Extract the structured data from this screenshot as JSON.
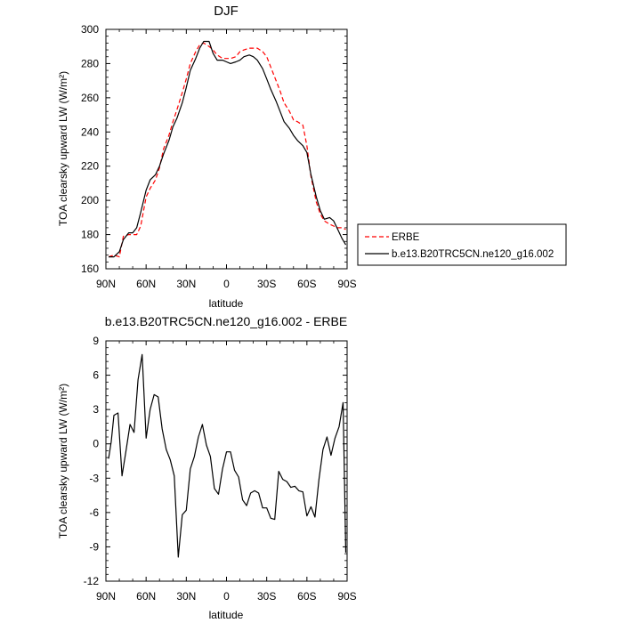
{
  "chart_data": [
    {
      "type": "line",
      "title": "DJF",
      "xlabel": "latitude",
      "ylabel": "TOA clearsky upward LW (W/m²)",
      "xlim": [
        90,
        -90
      ],
      "ylim": [
        160,
        300
      ],
      "x_ticks": [
        {
          "value": 90,
          "label": "90N"
        },
        {
          "value": 60,
          "label": "60N"
        },
        {
          "value": 30,
          "label": "30N"
        },
        {
          "value": 0,
          "label": "0"
        },
        {
          "value": -30,
          "label": "30S"
        },
        {
          "value": -60,
          "label": "60S"
        },
        {
          "value": -90,
          "label": "90S"
        }
      ],
      "y_ticks": [
        160,
        180,
        200,
        220,
        240,
        260,
        280,
        300
      ],
      "legend": {
        "placement": "right"
      },
      "series": [
        {
          "name": "ERBE",
          "color": "#ff0000",
          "dash": "dashed",
          "x": [
            88,
            84,
            80,
            77,
            73,
            70,
            67,
            64,
            60,
            57,
            53,
            50,
            47,
            43,
            40,
            37,
            33,
            30,
            27,
            23,
            20,
            17,
            13,
            10,
            7,
            3,
            0,
            -3,
            -7,
            -10,
            -13,
            -17,
            -20,
            -23,
            -27,
            -30,
            -33,
            -37,
            -40,
            -43,
            -47,
            -50,
            -53,
            -57,
            -60,
            -63,
            -67,
            -70,
            -73,
            -77,
            -80,
            -83,
            -86,
            -89
          ],
          "values": [
            167,
            168,
            167,
            179,
            180,
            180,
            180,
            185,
            202,
            207,
            212,
            219,
            230,
            238,
            246,
            253,
            263,
            271,
            280,
            287,
            291,
            292,
            290,
            288,
            285,
            283,
            283,
            283,
            284,
            287,
            288,
            289,
            289,
            289,
            287,
            284,
            278,
            270,
            264,
            257,
            252,
            247,
            246,
            244,
            232,
            214,
            199,
            192,
            188,
            186,
            185,
            184,
            184,
            183
          ]
        },
        {
          "name": "b.e13.B20TRC5CN.ne120_g16.002",
          "color": "#000000",
          "dash": "solid",
          "x": [
            88,
            84,
            80,
            77,
            73,
            70,
            67,
            64,
            60,
            57,
            53,
            50,
            47,
            43,
            40,
            37,
            33,
            30,
            27,
            23,
            20,
            17,
            13,
            10,
            7,
            3,
            0,
            -3,
            -7,
            -10,
            -13,
            -17,
            -20,
            -23,
            -27,
            -30,
            -33,
            -37,
            -40,
            -43,
            -47,
            -50,
            -53,
            -57,
            -60,
            -63,
            -67,
            -70,
            -73,
            -77,
            -80,
            -83,
            -86,
            -89
          ],
          "values": [
            167,
            167,
            170,
            177,
            181,
            181,
            184,
            193,
            206,
            212,
            215,
            220,
            227,
            235,
            243,
            248,
            257,
            266,
            276,
            283,
            289,
            293,
            293,
            286,
            282,
            282,
            281,
            280,
            281,
            282,
            284,
            285,
            284,
            282,
            277,
            271,
            265,
            258,
            252,
            246,
            242,
            238,
            235,
            232,
            228,
            215,
            202,
            194,
            189,
            190,
            188,
            183,
            178,
            174
          ]
        }
      ]
    },
    {
      "type": "line",
      "title": "b.e13.B20TRC5CN.ne120_g16.002 - ERBE",
      "xlabel": "latitude",
      "ylabel": "TOA clearsky upward LW (W/m²)",
      "xlim": [
        90,
        -90
      ],
      "ylim": [
        -12,
        9
      ],
      "x_ticks": [
        {
          "value": 90,
          "label": "90N"
        },
        {
          "value": 60,
          "label": "60N"
        },
        {
          "value": 30,
          "label": "30N"
        },
        {
          "value": 0,
          "label": "0"
        },
        {
          "value": -30,
          "label": "30S"
        },
        {
          "value": -60,
          "label": "60S"
        },
        {
          "value": -90,
          "label": "90S"
        }
      ],
      "y_ticks": [
        -12,
        -9,
        -6,
        -3,
        0,
        3,
        6,
        9
      ],
      "series": [
        {
          "color": "#000000",
          "dash": "solid",
          "x": [
            88,
            86,
            84,
            81,
            78,
            75,
            72,
            69,
            66,
            63,
            60,
            57,
            54,
            51,
            48,
            45,
            42,
            39,
            36,
            33,
            30,
            27,
            24,
            21,
            18,
            15,
            12,
            9,
            6,
            3,
            0,
            -3,
            -6,
            -9,
            -12,
            -15,
            -18,
            -21,
            -24,
            -27,
            -30,
            -33,
            -36,
            -39,
            -42,
            -45,
            -48,
            -51,
            -54,
            -57,
            -60,
            -63,
            -66,
            -69,
            -72,
            -75,
            -78,
            -81,
            -84,
            -87,
            -89
          ],
          "values": [
            -1.3,
            0.2,
            2.5,
            2.7,
            -2.8,
            -0.6,
            1.7,
            1.0,
            5.6,
            7.8,
            0.5,
            3.0,
            4.3,
            4.1,
            1.3,
            -0.5,
            -1.4,
            -2.8,
            -9.9,
            -6.2,
            -5.8,
            -2.2,
            -1.1,
            0.6,
            1.7,
            -0.1,
            -1.1,
            -3.9,
            -4.4,
            -2.2,
            -0.7,
            -0.7,
            -2.3,
            -2.9,
            -4.9,
            -5.4,
            -4.3,
            -4.1,
            -4.3,
            -5.6,
            -5.6,
            -6.5,
            -6.6,
            -2.4,
            -3.1,
            -3.3,
            -3.8,
            -3.7,
            -4.1,
            -4.2,
            -6.3,
            -5.5,
            -6.4,
            -3.1,
            -0.5,
            0.6,
            -1.0,
            0.5,
            1.5,
            3.6,
            -9.5
          ]
        }
      ]
    }
  ]
}
